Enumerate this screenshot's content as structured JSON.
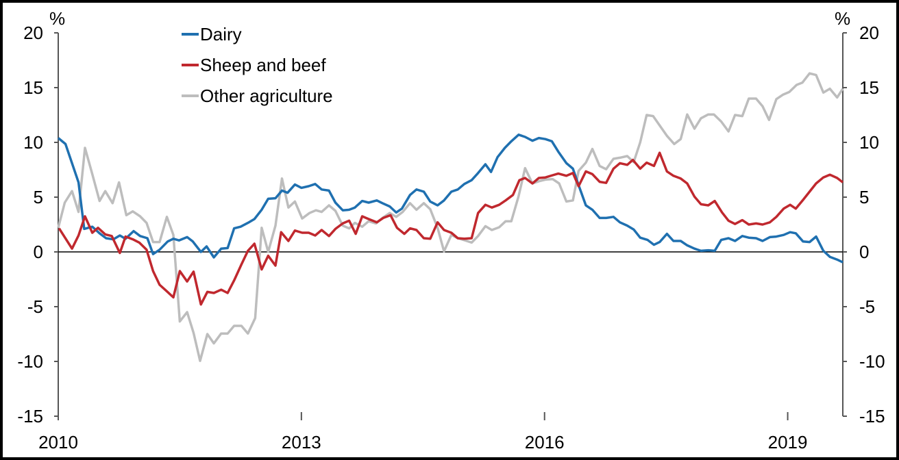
{
  "chart_data": {
    "type": "line",
    "title": "",
    "xlabel": "",
    "ylabel_left": "%",
    "ylabel_right": "%",
    "xlim": [
      2010,
      2019.68
    ],
    "ylim": [
      -15,
      20
    ],
    "yticks": [
      -15,
      -10,
      -5,
      0,
      5,
      10,
      15,
      20
    ],
    "xticks": [
      2010,
      2013,
      2016,
      2019
    ],
    "xtick_labels": [
      "2010",
      "2013",
      "2016",
      "2019"
    ],
    "ytick_labels": [
      "-15",
      "-10",
      "-5",
      "0",
      "5",
      "10",
      "15",
      "20"
    ],
    "legend_placement": "top-left",
    "series": [
      {
        "name": "Dairy",
        "color": "#1f70b0",
        "x": [
          2010.0,
          2010.09,
          2010.25,
          2010.32,
          2010.42,
          2010.51,
          2010.59,
          2010.68,
          2010.76,
          2010.83,
          2010.93,
          2011.01,
          2011.1,
          2011.17,
          2011.25,
          2011.35,
          2011.42,
          2011.49,
          2011.59,
          2011.66,
          2011.76,
          2011.83,
          2011.92,
          2012.01,
          2012.09,
          2012.17,
          2012.25,
          2012.34,
          2012.42,
          2012.51,
          2012.59,
          2012.68,
          2012.76,
          2012.83,
          2012.92,
          2013.0,
          2013.09,
          2013.17,
          2013.25,
          2013.34,
          2013.42,
          2013.51,
          2013.59,
          2013.66,
          2013.75,
          2013.83,
          2013.93,
          2014.0,
          2014.09,
          2014.17,
          2014.24,
          2014.34,
          2014.42,
          2014.51,
          2014.59,
          2014.68,
          2014.76,
          2014.85,
          2014.93,
          2015.01,
          2015.1,
          2015.18,
          2015.27,
          2015.34,
          2015.42,
          2015.51,
          2015.59,
          2015.68,
          2015.76,
          2015.85,
          2015.93,
          2016.01,
          2016.09,
          2016.17,
          2016.27,
          2016.35,
          2016.42,
          2016.51,
          2016.59,
          2016.68,
          2016.76,
          2016.85,
          2016.93,
          2017.02,
          2017.1,
          2017.18,
          2017.27,
          2017.35,
          2017.42,
          2017.51,
          2017.59,
          2017.68,
          2017.76,
          2017.85,
          2017.93,
          2018.02,
          2018.1,
          2018.18,
          2018.27,
          2018.35,
          2018.44,
          2018.52,
          2018.61,
          2018.69,
          2018.78,
          2018.86,
          2018.95,
          2019.03,
          2019.1,
          2019.19,
          2019.27,
          2019.35,
          2019.44,
          2019.52,
          2019.61,
          2019.68
        ],
        "y": [
          10.4,
          9.85,
          6.35,
          2.1,
          2.3,
          1.7,
          1.25,
          1.15,
          1.5,
          1.2,
          1.9,
          1.45,
          1.25,
          -0.2,
          0.2,
          0.95,
          1.2,
          1.05,
          1.35,
          0.95,
          0.0,
          0.5,
          -0.5,
          0.3,
          0.35,
          2.15,
          2.3,
          2.65,
          3.0,
          3.85,
          4.85,
          4.9,
          5.6,
          5.4,
          6.15,
          5.85,
          6.0,
          6.2,
          5.7,
          5.6,
          4.5,
          3.8,
          3.85,
          4.05,
          4.65,
          4.5,
          4.7,
          4.45,
          4.15,
          3.6,
          3.95,
          5.2,
          5.7,
          5.5,
          4.6,
          4.25,
          4.7,
          5.5,
          5.7,
          6.2,
          6.55,
          7.2,
          8.0,
          7.3,
          8.65,
          9.5,
          10.1,
          10.7,
          10.5,
          10.15,
          10.4,
          10.3,
          10.1,
          9.15,
          8.1,
          7.6,
          6.1,
          4.25,
          3.85,
          3.1,
          3.1,
          3.2,
          2.7,
          2.4,
          2.05,
          1.3,
          1.1,
          0.65,
          0.9,
          1.65,
          1.0,
          1.0,
          0.6,
          0.3,
          0.1,
          0.15,
          0.1,
          1.1,
          1.25,
          1.0,
          1.45,
          1.3,
          1.25,
          1.0,
          1.35,
          1.4,
          1.55,
          1.8,
          1.7,
          0.95,
          0.9,
          1.4,
          0.1,
          -0.45,
          -0.7,
          -0.95
        ]
      },
      {
        "name": "Sheep and beef",
        "color": "#c0282e",
        "x": [
          2010.01,
          2010.17,
          2010.25,
          2010.33,
          2010.42,
          2010.49,
          2010.58,
          2010.66,
          2010.76,
          2010.83,
          2010.92,
          2011.0,
          2011.09,
          2011.17,
          2011.25,
          2011.34,
          2011.42,
          2011.5,
          2011.59,
          2011.67,
          2011.76,
          2011.84,
          2011.92,
          2012.01,
          2012.09,
          2012.17,
          2012.26,
          2012.34,
          2012.42,
          2012.51,
          2012.59,
          2012.68,
          2012.75,
          2012.84,
          2012.92,
          2013.01,
          2013.09,
          2013.17,
          2013.25,
          2013.34,
          2013.42,
          2013.51,
          2013.59,
          2013.67,
          2013.75,
          2013.83,
          2013.93,
          2014.01,
          2014.1,
          2014.18,
          2014.27,
          2014.34,
          2014.42,
          2014.51,
          2014.59,
          2014.68,
          2014.76,
          2014.85,
          2014.93,
          2015.01,
          2015.1,
          2015.18,
          2015.27,
          2015.35,
          2015.44,
          2015.52,
          2015.61,
          2015.69,
          2015.76,
          2015.85,
          2015.93,
          2016.01,
          2016.1,
          2016.17,
          2016.27,
          2016.35,
          2016.42,
          2016.51,
          2016.59,
          2016.68,
          2016.76,
          2016.85,
          2016.93,
          2017.02,
          2017.09,
          2017.18,
          2017.26,
          2017.35,
          2017.42,
          2017.51,
          2017.59,
          2017.68,
          2017.76,
          2017.85,
          2017.93,
          2018.02,
          2018.1,
          2018.19,
          2018.27,
          2018.35,
          2018.44,
          2018.52,
          2018.61,
          2018.69,
          2018.78,
          2018.86,
          2018.95,
          2019.03,
          2019.1,
          2019.19,
          2019.27,
          2019.35,
          2019.44,
          2019.52,
          2019.61,
          2019.68
        ],
        "y": [
          2.15,
          0.3,
          1.5,
          3.25,
          1.75,
          2.2,
          1.6,
          1.45,
          -0.1,
          1.4,
          1.15,
          0.85,
          0.2,
          -1.75,
          -3.0,
          -3.6,
          -4.15,
          -1.75,
          -2.7,
          -1.8,
          -4.8,
          -3.65,
          -3.75,
          -3.45,
          -3.75,
          -2.6,
          -1.15,
          0.1,
          0.75,
          -1.6,
          -0.35,
          -1.25,
          1.8,
          1.0,
          1.95,
          1.75,
          1.75,
          1.5,
          2.0,
          1.45,
          2.1,
          2.6,
          2.85,
          1.65,
          3.25,
          3.0,
          2.7,
          3.1,
          3.35,
          2.2,
          1.65,
          2.15,
          2.0,
          1.25,
          1.2,
          2.7,
          2.0,
          1.75,
          1.25,
          1.2,
          1.25,
          3.55,
          4.3,
          4.05,
          4.3,
          4.7,
          5.2,
          6.55,
          6.75,
          6.25,
          6.75,
          6.8,
          7.0,
          7.15,
          6.95,
          7.2,
          6.0,
          7.35,
          7.1,
          6.4,
          6.3,
          7.6,
          8.1,
          7.95,
          8.4,
          7.6,
          8.15,
          7.85,
          9.05,
          7.35,
          6.95,
          6.7,
          6.25,
          5.05,
          4.35,
          4.25,
          4.65,
          3.6,
          2.85,
          2.55,
          2.9,
          2.5,
          2.6,
          2.5,
          2.7,
          3.2,
          3.95,
          4.3,
          3.95,
          4.75,
          5.5,
          6.25,
          6.8,
          7.05,
          6.75,
          6.35
        ]
      },
      {
        "name": "Other agriculture",
        "color": "#bdbdbd",
        "x": [
          2010.0,
          2010.08,
          2010.17,
          2010.25,
          2010.33,
          2010.42,
          2010.51,
          2010.58,
          2010.67,
          2010.75,
          2010.84,
          2010.92,
          2011.01,
          2011.09,
          2011.17,
          2011.25,
          2011.34,
          2011.42,
          2011.5,
          2011.59,
          2011.67,
          2011.75,
          2011.84,
          2011.92,
          2012.01,
          2012.09,
          2012.17,
          2012.26,
          2012.34,
          2012.43,
          2012.51,
          2012.59,
          2012.68,
          2012.76,
          2012.84,
          2012.92,
          2013.01,
          2013.1,
          2013.18,
          2013.25,
          2013.34,
          2013.42,
          2013.51,
          2013.59,
          2013.66,
          2013.75,
          2013.83,
          2013.92,
          2014.0,
          2014.09,
          2014.17,
          2014.25,
          2014.34,
          2014.42,
          2014.51,
          2014.59,
          2014.68,
          2014.76,
          2014.85,
          2014.93,
          2015.02,
          2015.1,
          2015.18,
          2015.27,
          2015.35,
          2015.44,
          2015.52,
          2015.59,
          2015.68,
          2015.76,
          2015.85,
          2015.93,
          2016.01,
          2016.1,
          2016.18,
          2016.27,
          2016.35,
          2016.42,
          2016.51,
          2016.59,
          2016.68,
          2016.76,
          2016.85,
          2016.93,
          2017.02,
          2017.1,
          2017.18,
          2017.26,
          2017.34,
          2017.42,
          2017.51,
          2017.6,
          2017.68,
          2017.76,
          2017.85,
          2017.93,
          2018.02,
          2018.09,
          2018.18,
          2018.27,
          2018.35,
          2018.44,
          2018.52,
          2018.61,
          2018.69,
          2018.77,
          2018.86,
          2018.94,
          2019.02,
          2019.11,
          2019.18,
          2019.27,
          2019.35,
          2019.44,
          2019.52,
          2019.61,
          2019.68
        ],
        "y": [
          2.2,
          4.5,
          5.55,
          3.65,
          9.5,
          7.1,
          4.65,
          5.55,
          4.45,
          6.35,
          3.35,
          3.7,
          3.25,
          2.65,
          0.9,
          0.9,
          3.2,
          1.55,
          -6.35,
          -5.5,
          -7.4,
          -9.95,
          -7.5,
          -8.35,
          -7.45,
          -7.45,
          -6.75,
          -6.75,
          -7.45,
          -6.05,
          2.2,
          0.0,
          2.4,
          6.7,
          4.05,
          4.6,
          3.05,
          3.55,
          3.8,
          3.65,
          4.25,
          3.75,
          2.4,
          2.15,
          2.65,
          2.3,
          2.8,
          2.6,
          3.1,
          3.55,
          3.2,
          3.65,
          4.45,
          3.85,
          4.45,
          3.9,
          2.2,
          0.05,
          1.55,
          1.25,
          1.05,
          0.85,
          1.45,
          2.35,
          2.0,
          2.25,
          2.8,
          2.8,
          5.1,
          7.65,
          6.25,
          6.45,
          6.6,
          6.65,
          6.25,
          4.6,
          4.7,
          7.4,
          8.15,
          9.4,
          7.85,
          7.55,
          8.5,
          8.6,
          8.75,
          8.2,
          10.0,
          12.5,
          12.4,
          11.55,
          10.6,
          9.85,
          10.3,
          12.55,
          11.25,
          12.2,
          12.55,
          12.55,
          11.9,
          11.0,
          12.5,
          12.4,
          14.0,
          14.0,
          13.3,
          12.05,
          13.95,
          14.35,
          14.6,
          15.25,
          15.45,
          16.3,
          16.15,
          14.55,
          14.9,
          14.1,
          14.9
        ]
      }
    ]
  }
}
